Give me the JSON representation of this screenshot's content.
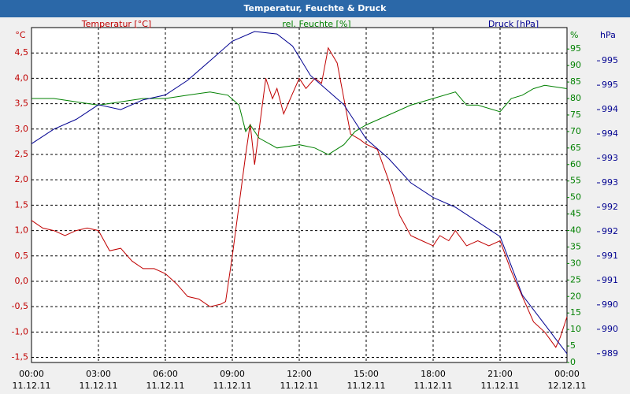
{
  "chart_data": {
    "type": "line",
    "title": "Temperatur, Feuchte & Druck",
    "y_label": "Temperatur [°C]",
    "y_unit": "°C",
    "y2_label": "rel. Feuchte [%]",
    "y2_unit": "%",
    "y3_label": "Druck [hPa]",
    "y3_unit": "hPa",
    "xlim": [
      0,
      24
    ],
    "xticks": [
      {
        "value": 0,
        "label": "00:00",
        "date": "11.12.11"
      },
      {
        "value": 3,
        "label": "03:00",
        "date": "11.12.11"
      },
      {
        "value": 6,
        "label": "06:00",
        "date": "11.12.11"
      },
      {
        "value": 9,
        "label": "09:00",
        "date": "11.12.11"
      },
      {
        "value": 12,
        "label": "12:00",
        "date": "11.12.11"
      },
      {
        "value": 15,
        "label": "15:00",
        "date": "11.12.11"
      },
      {
        "value": 18,
        "label": "18:00",
        "date": "11.12.11"
      },
      {
        "value": 21,
        "label": "21:00",
        "date": "11.12.11"
      },
      {
        "value": 24,
        "label": "00:00",
        "date": "12.12.11"
      }
    ],
    "ylim": [
      -1.6,
      5.0
    ],
    "yticks": [
      {
        "value": -1.5,
        "label": "-1,5"
      },
      {
        "value": -1.0,
        "label": "-1,0"
      },
      {
        "value": -0.5,
        "label": "-0,5"
      },
      {
        "value": 0,
        "label": "0,0"
      },
      {
        "value": 0.5,
        "label": "0,5"
      },
      {
        "value": 1.0,
        "label": "1,0"
      },
      {
        "value": 1.5,
        "label": "1,5"
      },
      {
        "value": 2.0,
        "label": "2,0"
      },
      {
        "value": 2.5,
        "label": "2,5"
      },
      {
        "value": 3.0,
        "label": "3,0"
      },
      {
        "value": 3.5,
        "label": "3,5"
      },
      {
        "value": 4.0,
        "label": "4,0"
      },
      {
        "value": 4.5,
        "label": "4,5"
      }
    ],
    "y2lim": [
      0,
      101.5
    ],
    "y2ticks": [
      0,
      5,
      10,
      15,
      20,
      25,
      30,
      35,
      40,
      45,
      50,
      55,
      60,
      65,
      70,
      75,
      80,
      85,
      90,
      95
    ],
    "y3lim": [
      989.02,
      995.88
    ],
    "y3ticks": [
      {
        "value": 989.2,
        "label": "989"
      },
      {
        "value": 989.7,
        "label": "990"
      },
      {
        "value": 990.2,
        "label": "990"
      },
      {
        "value": 990.7,
        "label": "991"
      },
      {
        "value": 991.2,
        "label": "991"
      },
      {
        "value": 991.7,
        "label": "992"
      },
      {
        "value": 992.2,
        "label": "992"
      },
      {
        "value": 992.7,
        "label": "993"
      },
      {
        "value": 993.2,
        "label": "993"
      },
      {
        "value": 993.7,
        "label": "994"
      },
      {
        "value": 994.2,
        "label": "994"
      },
      {
        "value": 994.7,
        "label": "995"
      },
      {
        "value": 995.2,
        "label": "995"
      }
    ],
    "grid": true,
    "series": [
      {
        "name": "Temperatur [°C]",
        "color": "#c00000",
        "axis": "y",
        "x": [
          0,
          0.5,
          1,
          1.5,
          2,
          2.5,
          3,
          3.5,
          4,
          4.5,
          5,
          5.5,
          6,
          6.5,
          7,
          7.5,
          8,
          8.5,
          8.7,
          9,
          9.3,
          9.6,
          9.8,
          10,
          10.5,
          10.8,
          11,
          11.3,
          11.7,
          12,
          12.3,
          12.7,
          13,
          13.3,
          13.7,
          14,
          14.3,
          14.7,
          15,
          15.5,
          16,
          16.5,
          17,
          17.5,
          18,
          18.3,
          18.7,
          19,
          19.5,
          20,
          20.5,
          21,
          21.5,
          22,
          22.5,
          23,
          23.5,
          23.7,
          24
        ],
        "values": [
          1.2,
          1.05,
          1.0,
          0.9,
          1.0,
          1.05,
          1.0,
          0.6,
          0.65,
          0.4,
          0.25,
          0.25,
          0.15,
          -0.05,
          -0.3,
          -0.35,
          -0.5,
          -0.45,
          -0.4,
          0.5,
          1.5,
          2.5,
          3.1,
          2.3,
          4.0,
          3.6,
          3.8,
          3.3,
          3.7,
          4.0,
          3.8,
          4.0,
          3.9,
          4.6,
          4.3,
          3.6,
          2.9,
          2.8,
          2.7,
          2.6,
          2.0,
          1.3,
          0.9,
          0.8,
          0.7,
          0.9,
          0.8,
          1.0,
          0.7,
          0.8,
          0.7,
          0.8,
          0.2,
          -0.3,
          -0.8,
          -1.0,
          -1.3,
          -1.1,
          -0.7
        ]
      },
      {
        "name": "rel. Feuchte [%]",
        "color": "#008000",
        "axis": "y2",
        "x": [
          0,
          1,
          2,
          3,
          4,
          5,
          6,
          7,
          8,
          8.8,
          9.3,
          9.6,
          9.8,
          10.2,
          11,
          12,
          12.7,
          13.3,
          14,
          14.5,
          15,
          16,
          17,
          18,
          19,
          19.5,
          20,
          21,
          21.5,
          22,
          22.5,
          23,
          24
        ],
        "values": [
          80,
          80,
          79,
          78,
          79,
          80,
          80,
          81,
          82,
          81,
          78,
          70,
          72,
          68,
          65,
          66,
          65,
          63,
          66,
          70,
          72,
          75,
          78,
          80,
          82,
          78,
          78,
          76,
          80,
          81,
          83,
          84,
          83
        ]
      },
      {
        "name": "Druck [hPa]",
        "color": "#000090",
        "axis": "y3",
        "x": [
          0,
          1,
          2,
          3,
          4,
          5,
          6,
          7,
          8,
          9,
          10,
          11,
          11.7,
          12.5,
          14,
          15,
          16,
          17,
          18,
          19,
          20,
          21,
          21.5,
          22,
          23,
          23.5,
          24
        ],
        "values": [
          993.5,
          993.8,
          994.0,
          994.3,
          994.2,
          994.4,
          994.5,
          994.8,
          995.2,
          995.6,
          995.8,
          995.75,
          995.5,
          994.9,
          994.3,
          993.6,
          993.2,
          992.7,
          992.4,
          992.2,
          991.9,
          991.6,
          991.0,
          990.4,
          989.8,
          989.5,
          989.2
        ]
      }
    ]
  }
}
